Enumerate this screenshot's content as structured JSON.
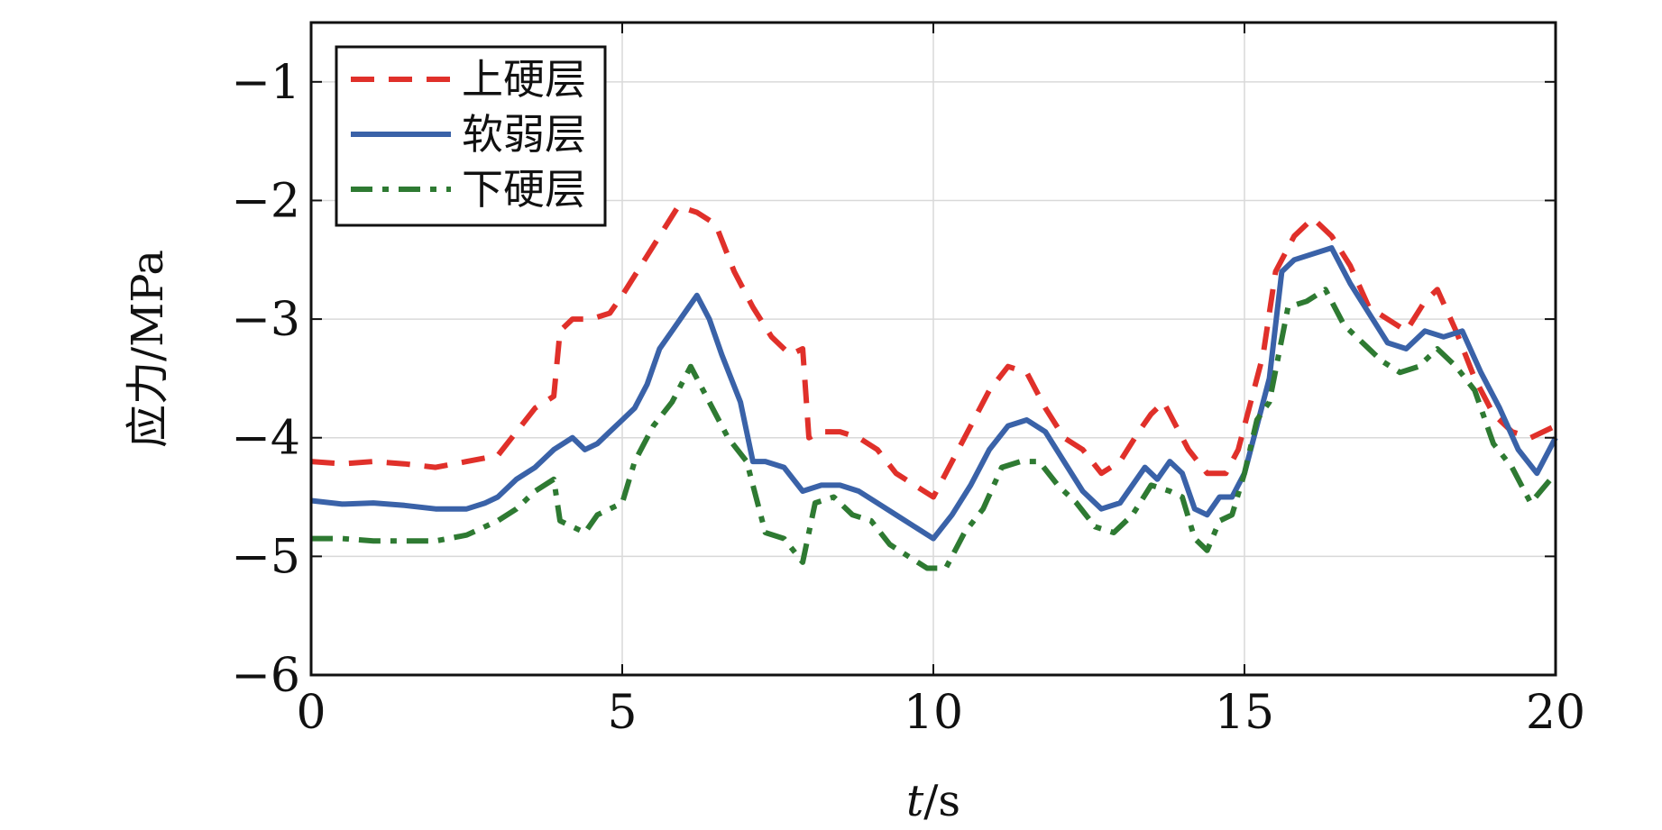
{
  "chart_data": {
    "type": "line",
    "xlabel": "t/s",
    "xlabel_italic": "t",
    "xlabel_rest": "/s",
    "ylabel": "应力/MPa",
    "xlim": [
      0,
      20
    ],
    "ylim": [
      -6,
      -0.5
    ],
    "xticks": [
      0,
      5,
      10,
      15,
      20
    ],
    "yticks": [
      -1,
      -2,
      -3,
      -4,
      -5,
      -6
    ],
    "xtick_labels": [
      "0",
      "5",
      "10",
      "15",
      "20"
    ],
    "ytick_labels": [
      "−1",
      "−2",
      "−3",
      "−4",
      "−5",
      "−6"
    ],
    "grid": true,
    "legend_position": "top-left",
    "series": [
      {
        "name": "上硬层",
        "color": "#e0302a",
        "dash": "dashed",
        "x": [
          0,
          0.5,
          1,
          1.5,
          2,
          2.5,
          3,
          3.3,
          3.6,
          3.9,
          4.0,
          4.2,
          4.5,
          4.8,
          5.0,
          5.3,
          5.6,
          5.9,
          6.2,
          6.5,
          6.8,
          7.1,
          7.4,
          7.7,
          7.9,
          8.0,
          8.2,
          8.5,
          8.8,
          9.1,
          9.4,
          9.7,
          10.0,
          10.3,
          10.6,
          10.9,
          11.2,
          11.5,
          11.8,
          12.1,
          12.4,
          12.7,
          13.0,
          13.3,
          13.5,
          13.7,
          13.9,
          14.1,
          14.4,
          14.7,
          14.9,
          15.1,
          15.3,
          15.5,
          15.8,
          16.1,
          16.4,
          16.7,
          17.0,
          17.3,
          17.6,
          17.9,
          18.1,
          18.4,
          18.7,
          19.0,
          19.3,
          19.6,
          20.0
        ],
        "y": [
          -4.2,
          -4.22,
          -4.2,
          -4.22,
          -4.25,
          -4.2,
          -4.15,
          -3.95,
          -3.75,
          -3.65,
          -3.1,
          -3.0,
          -3.0,
          -2.95,
          -2.8,
          -2.55,
          -2.3,
          -2.05,
          -2.1,
          -2.2,
          -2.6,
          -2.9,
          -3.15,
          -3.3,
          -3.25,
          -4.0,
          -3.95,
          -3.95,
          -4.0,
          -4.1,
          -4.3,
          -4.4,
          -4.5,
          -4.2,
          -3.9,
          -3.6,
          -3.4,
          -3.45,
          -3.75,
          -4.0,
          -4.1,
          -4.3,
          -4.2,
          -3.95,
          -3.8,
          -3.7,
          -3.9,
          -4.1,
          -4.3,
          -4.3,
          -4.1,
          -3.7,
          -3.3,
          -2.6,
          -2.3,
          -2.15,
          -2.3,
          -2.55,
          -2.9,
          -3.0,
          -3.1,
          -2.85,
          -2.75,
          -3.1,
          -3.5,
          -3.8,
          -3.95,
          -4.0,
          -3.9
        ]
      },
      {
        "name": "软弱层",
        "color": "#3a62a8",
        "dash": "solid",
        "x": [
          0,
          0.5,
          1,
          1.5,
          2,
          2.5,
          2.8,
          3.0,
          3.3,
          3.6,
          3.9,
          4.2,
          4.4,
          4.6,
          4.8,
          5.0,
          5.2,
          5.4,
          5.6,
          5.8,
          6.0,
          6.2,
          6.4,
          6.6,
          6.9,
          7.1,
          7.3,
          7.6,
          7.9,
          8.2,
          8.5,
          8.8,
          9.1,
          9.4,
          9.7,
          10.0,
          10.3,
          10.6,
          10.9,
          11.2,
          11.5,
          11.8,
          12.1,
          12.4,
          12.7,
          13.0,
          13.2,
          13.4,
          13.6,
          13.8,
          14.0,
          14.2,
          14.4,
          14.6,
          14.8,
          15.0,
          15.2,
          15.4,
          15.6,
          15.8,
          16.1,
          16.4,
          16.7,
          17.0,
          17.3,
          17.6,
          17.9,
          18.2,
          18.5,
          18.8,
          19.1,
          19.4,
          19.7,
          20.0
        ],
        "y": [
          -4.53,
          -4.56,
          -4.55,
          -4.57,
          -4.6,
          -4.6,
          -4.55,
          -4.5,
          -4.35,
          -4.25,
          -4.1,
          -4.0,
          -4.1,
          -4.05,
          -3.95,
          -3.85,
          -3.75,
          -3.55,
          -3.25,
          -3.1,
          -2.95,
          -2.8,
          -3.0,
          -3.3,
          -3.7,
          -4.2,
          -4.2,
          -4.25,
          -4.45,
          -4.4,
          -4.4,
          -4.45,
          -4.55,
          -4.65,
          -4.75,
          -4.85,
          -4.65,
          -4.4,
          -4.1,
          -3.9,
          -3.85,
          -3.95,
          -4.2,
          -4.45,
          -4.6,
          -4.55,
          -4.4,
          -4.25,
          -4.35,
          -4.2,
          -4.3,
          -4.6,
          -4.65,
          -4.5,
          -4.5,
          -4.3,
          -3.9,
          -3.5,
          -2.6,
          -2.5,
          -2.45,
          -2.4,
          -2.7,
          -2.95,
          -3.2,
          -3.25,
          -3.1,
          -3.15,
          -3.1,
          -3.45,
          -3.75,
          -4.1,
          -4.3,
          -4.0
        ]
      },
      {
        "name": "下硬层",
        "color": "#2e7a32",
        "dash": "dashdot",
        "x": [
          0,
          0.5,
          1,
          1.5,
          2,
          2.5,
          3,
          3.3,
          3.6,
          3.9,
          4.0,
          4.2,
          4.4,
          4.6,
          4.8,
          5.0,
          5.2,
          5.5,
          5.8,
          6.1,
          6.4,
          6.7,
          7.0,
          7.3,
          7.6,
          7.9,
          8.1,
          8.4,
          8.7,
          9.0,
          9.3,
          9.6,
          9.9,
          10.2,
          10.5,
          10.8,
          11.1,
          11.4,
          11.7,
          12.0,
          12.3,
          12.6,
          12.9,
          13.2,
          13.5,
          13.8,
          14.0,
          14.2,
          14.4,
          14.6,
          14.8,
          15.0,
          15.2,
          15.4,
          15.7,
          16.0,
          16.3,
          16.6,
          16.9,
          17.2,
          17.5,
          17.8,
          18.1,
          18.4,
          18.7,
          19.0,
          19.3,
          19.6,
          20.0
        ],
        "y": [
          -4.85,
          -4.85,
          -4.87,
          -4.87,
          -4.87,
          -4.82,
          -4.7,
          -4.6,
          -4.45,
          -4.35,
          -4.7,
          -4.75,
          -4.8,
          -4.65,
          -4.6,
          -4.55,
          -4.2,
          -3.9,
          -3.7,
          -3.4,
          -3.7,
          -4.0,
          -4.2,
          -4.8,
          -4.85,
          -5.05,
          -4.55,
          -4.5,
          -4.65,
          -4.7,
          -4.9,
          -5.0,
          -5.1,
          -5.1,
          -4.8,
          -4.6,
          -4.25,
          -4.2,
          -4.2,
          -4.4,
          -4.55,
          -4.75,
          -4.8,
          -4.65,
          -4.4,
          -4.45,
          -4.5,
          -4.85,
          -4.95,
          -4.7,
          -4.65,
          -4.3,
          -3.85,
          -3.7,
          -2.9,
          -2.85,
          -2.75,
          -3.05,
          -3.2,
          -3.35,
          -3.45,
          -3.4,
          -3.25,
          -3.4,
          -3.6,
          -4.05,
          -4.25,
          -4.55,
          -4.3
        ]
      }
    ]
  }
}
